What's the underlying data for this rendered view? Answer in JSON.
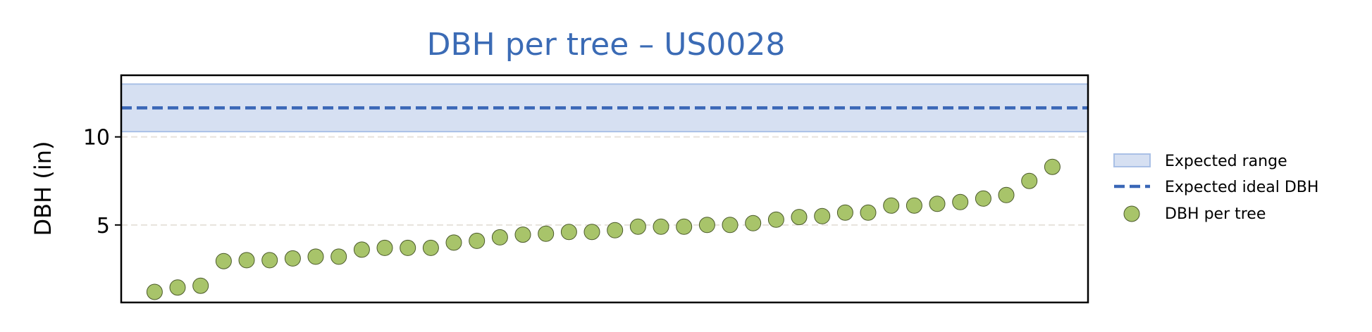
{
  "chart_data": {
    "type": "scatter",
    "title": "DBH per tree – US0028",
    "xlabel": "",
    "ylabel": "DBH (in)",
    "ylim": [
      0.6,
      13.5
    ],
    "yticks": [
      5,
      10
    ],
    "ytick_labels": [
      "5",
      "10"
    ],
    "xticks": [],
    "grid": "horizontal-dashed",
    "legend_position": "right",
    "expected_range": [
      10.3,
      13.0
    ],
    "expected_ideal": 11.65,
    "series": [
      {
        "name": "DBH per tree",
        "values": [
          1.2,
          1.45,
          1.55,
          2.95,
          3.0,
          3.0,
          3.1,
          3.2,
          3.2,
          3.6,
          3.7,
          3.7,
          3.7,
          4.0,
          4.1,
          4.3,
          4.45,
          4.5,
          4.6,
          4.6,
          4.7,
          4.9,
          4.9,
          4.9,
          5.0,
          5.0,
          5.1,
          5.3,
          5.45,
          5.5,
          5.7,
          5.7,
          6.1,
          6.1,
          6.2,
          6.3,
          6.5,
          6.7,
          7.5,
          8.3
        ]
      }
    ],
    "legend": [
      {
        "label": "Expected range",
        "kind": "band"
      },
      {
        "label": "Expected ideal DBH",
        "kind": "dashed-line"
      },
      {
        "label": "DBH per tree",
        "kind": "marker"
      }
    ],
    "colors": {
      "title": "#3b6bb5",
      "band_fill": "#d6e0f2",
      "band_edge": "#a9c0e6",
      "ideal_line": "#3a67b7",
      "marker_fill": "#a8c46a",
      "marker_edge": "#4b5a2b",
      "grid": "#e7e2dc"
    }
  }
}
